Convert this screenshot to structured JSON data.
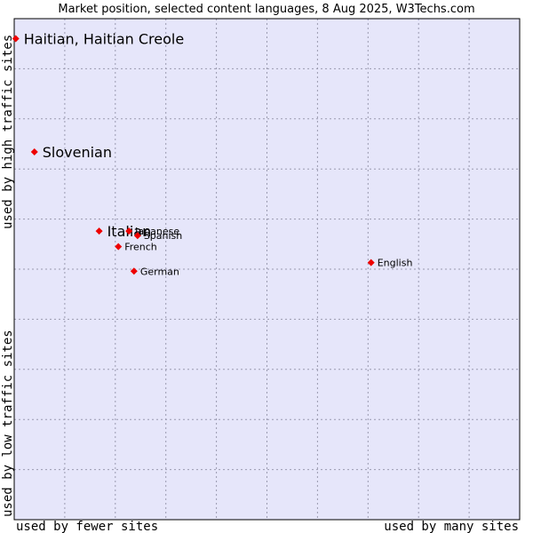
{
  "chart_data": {
    "type": "scatter",
    "title": "Market position, selected content languages, 8 Aug 2025, W3Techs.com",
    "xlabel_left": "used by fewer sites",
    "xlabel_right": "used by many sites",
    "ylabel_bottom": "used by low traffic sites",
    "ylabel_top": "used by high traffic sites",
    "xlim": [
      0,
      100
    ],
    "ylim": [
      0,
      100
    ],
    "grid": true,
    "colors": {
      "plot_bg": "#e6e6fa",
      "grid": "#9a9ab0",
      "marker": "#ee0000",
      "border": "#000000"
    },
    "points": [
      {
        "name": "Haitian, Haitian Creole",
        "x": 0.3,
        "y": 96.0,
        "size": "large"
      },
      {
        "name": "Slovenian",
        "x": 4.0,
        "y": 73.4,
        "size": "large"
      },
      {
        "name": "Italian",
        "x": 16.8,
        "y": 57.6,
        "size": "large"
      },
      {
        "name": "Japanese",
        "x": 22.7,
        "y": 57.6,
        "size": "small"
      },
      {
        "name": "Spanish",
        "x": 24.4,
        "y": 56.7,
        "size": "small"
      },
      {
        "name": "French",
        "x": 20.6,
        "y": 54.5,
        "size": "small"
      },
      {
        "name": "German",
        "x": 23.7,
        "y": 49.6,
        "size": "small"
      },
      {
        "name": "English",
        "x": 70.6,
        "y": 51.3,
        "size": "small"
      }
    ]
  }
}
